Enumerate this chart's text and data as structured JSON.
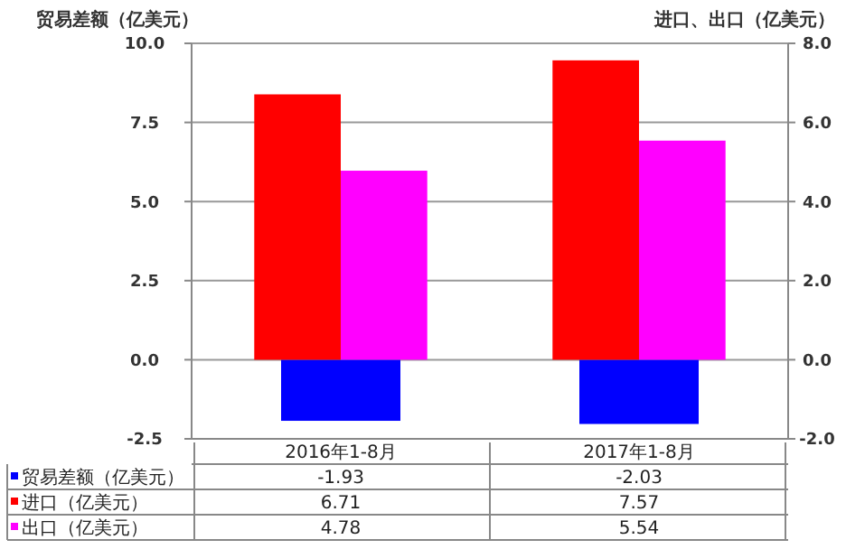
{
  "chart_data": {
    "type": "bar",
    "ylabel": "贸易差额（亿美元）",
    "y2label": "进口、出口（亿美元）",
    "categories": [
      "2016年1-8月",
      "2017年1-8月"
    ],
    "series": [
      {
        "name": "贸易差额（亿美元）",
        "color": "#0000ff",
        "values": [
          -1.93,
          -2.03
        ]
      },
      {
        "name": "进口（亿美元）",
        "color": "#ff0000",
        "values": [
          6.71,
          7.57
        ],
        "axis": "y2"
      },
      {
        "name": "出口（亿美元）",
        "color": "#ff00ff",
        "values": [
          4.78,
          5.54
        ],
        "axis": "y2"
      }
    ],
    "ylim": [
      -2.5,
      10
    ],
    "yticks": [
      {
        "value": -2.5,
        "label": "-2.5"
      },
      {
        "value": 0,
        "label": "0.0"
      },
      {
        "value": 2.5,
        "label": "2.5"
      },
      {
        "value": 5,
        "label": "5.0"
      },
      {
        "value": 7.5,
        "label": "7.5"
      },
      {
        "value": 10,
        "label": "10.0"
      }
    ],
    "y2lim": [
      -2,
      8
    ],
    "y2ticks": [
      {
        "value": -2,
        "label": "-2.0"
      },
      {
        "value": 0,
        "label": "0.0"
      },
      {
        "value": 2,
        "label": "2.0"
      },
      {
        "value": 4,
        "label": "4.0"
      },
      {
        "value": 6,
        "label": "6.0"
      },
      {
        "value": 8,
        "label": "8.0"
      }
    ],
    "grid": "y",
    "legend": "bottom",
    "data_labels": true
  }
}
